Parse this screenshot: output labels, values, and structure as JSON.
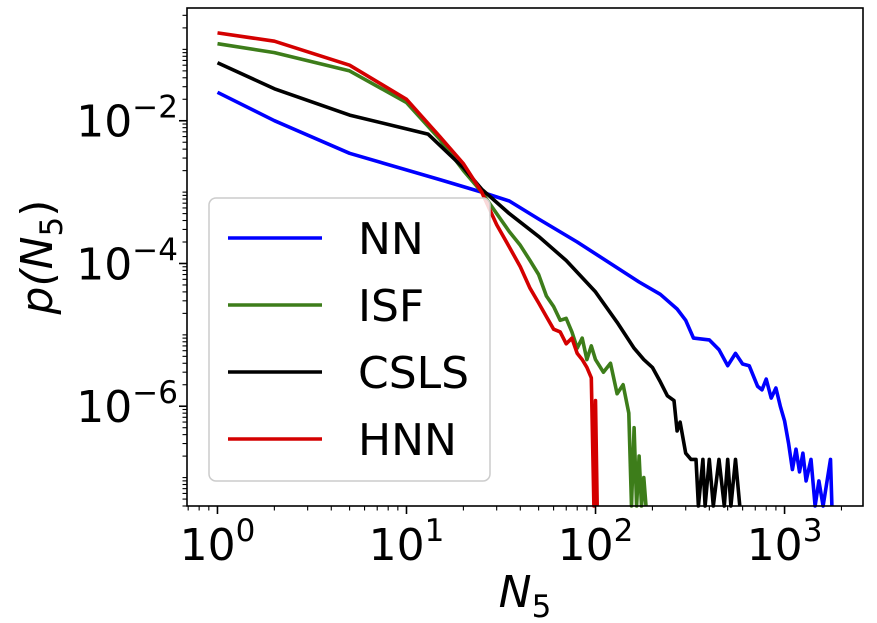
{
  "chart_data": {
    "type": "line",
    "title": "",
    "xlabel": "N",
    "xlabel_subscript": "5",
    "ylabel_prefix": "p(N",
    "ylabel_subscript": "5",
    "ylabel_suffix": ")",
    "x_scale": "log",
    "y_scale": "log",
    "xlim": [
      0.69,
      2600
    ],
    "ylim": [
      4e-08,
      0.38
    ],
    "grid": false,
    "legend_position": "center-left",
    "x_ticks": [
      {
        "base": "10",
        "exp": "0",
        "value": 1
      },
      {
        "base": "10",
        "exp": "1",
        "value": 10
      },
      {
        "base": "10",
        "exp": "2",
        "value": 100
      },
      {
        "base": "10",
        "exp": "3",
        "value": 1000
      }
    ],
    "y_ticks": [
      {
        "base": "10",
        "exp": "−2",
        "value": 0.01
      },
      {
        "base": "10",
        "exp": "−4",
        "value": 0.0001
      },
      {
        "base": "10",
        "exp": "−6",
        "value": 1e-06
      }
    ],
    "series": [
      {
        "name": "NN",
        "color": "#0000ff",
        "points": [
          [
            1,
            0.025
          ],
          [
            2,
            0.01
          ],
          [
            5,
            0.0035
          ],
          [
            15,
            0.0015
          ],
          [
            25,
            0.001
          ],
          [
            35,
            0.00075
          ],
          [
            50,
            0.00042
          ],
          [
            80,
            0.0002
          ],
          [
            120,
            0.0001
          ],
          [
            170,
            5.5e-05
          ],
          [
            220,
            3.7e-05
          ],
          [
            270,
            2.3e-05
          ],
          [
            300,
            1.6e-05
          ],
          [
            330,
            9e-06
          ],
          [
            400,
            8.5e-06
          ],
          [
            450,
            6.2e-06
          ],
          [
            500,
            3.7e-06
          ],
          [
            550,
            5.5e-06
          ],
          [
            600,
            3.9e-06
          ],
          [
            650,
            3.7e-06
          ],
          [
            720,
            1.9e-06
          ],
          [
            760,
            1.7e-06
          ],
          [
            800,
            2.4e-06
          ],
          [
            850,
            1.3e-06
          ],
          [
            900,
            1.8e-06
          ],
          [
            950,
            1e-06
          ],
          [
            1000,
            6.2e-07
          ],
          [
            1050,
            3e-07
          ],
          [
            1100,
            1.3e-07
          ],
          [
            1150,
            2.5e-07
          ],
          [
            1200,
            1.2e-07
          ],
          [
            1250,
            2.2e-07
          ],
          [
            1300,
            9e-08
          ],
          [
            1380,
            1.8e-07
          ],
          [
            1450,
            4e-08
          ],
          [
            1520,
            9e-08
          ],
          [
            1600,
            4e-08
          ],
          [
            1750,
            1.8e-07
          ],
          [
            1780,
            4e-08
          ]
        ]
      },
      {
        "name": "ISF",
        "color": "#3d7d1a",
        "points": [
          [
            1,
            0.12
          ],
          [
            2,
            0.09
          ],
          [
            5,
            0.05
          ],
          [
            10,
            0.018
          ],
          [
            15,
            0.0055
          ],
          [
            20,
            0.002
          ],
          [
            25,
            0.001
          ],
          [
            30,
            0.0005
          ],
          [
            35,
            0.00028
          ],
          [
            40,
            0.00018
          ],
          [
            45,
            0.00011
          ],
          [
            50,
            7e-05
          ],
          [
            55,
            3.5e-05
          ],
          [
            60,
            2.5e-05
          ],
          [
            65,
            1.6e-05
          ],
          [
            70,
            1.7e-05
          ],
          [
            75,
            1.1e-05
          ],
          [
            80,
            6.5e-06
          ],
          [
            85,
            9e-06
          ],
          [
            90,
            4.5e-06
          ],
          [
            95,
            7e-06
          ],
          [
            100,
            4.5e-06
          ],
          [
            110,
            3e-06
          ],
          [
            120,
            4e-06
          ],
          [
            130,
            1.5e-06
          ],
          [
            140,
            2e-06
          ],
          [
            150,
            8e-07
          ],
          [
            155,
            4e-08
          ],
          [
            160,
            5e-07
          ],
          [
            165,
            4e-08
          ],
          [
            170,
            2e-07
          ],
          [
            175,
            4e-08
          ],
          [
            180,
            1e-07
          ],
          [
            185,
            4e-08
          ]
        ]
      },
      {
        "name": "CSLS",
        "color": "#000000",
        "points": [
          [
            1,
            0.065
          ],
          [
            2,
            0.028
          ],
          [
            5,
            0.012
          ],
          [
            13,
            0.0065
          ],
          [
            20,
            0.0022
          ],
          [
            25,
            0.0011
          ],
          [
            35,
            0.0005
          ],
          [
            50,
            0.00024
          ],
          [
            70,
            0.00011
          ],
          [
            100,
            4e-05
          ],
          [
            130,
            1.5e-05
          ],
          [
            160,
            6.5e-06
          ],
          [
            180,
            4.5e-06
          ],
          [
            200,
            3.5e-06
          ],
          [
            220,
            2.2e-06
          ],
          [
            240,
            1.4e-06
          ],
          [
            260,
            1.2e-06
          ],
          [
            270,
            4.5e-07
          ],
          [
            280,
            6e-07
          ],
          [
            300,
            2.2e-07
          ],
          [
            320,
            1.8e-07
          ],
          [
            340,
            1.8e-07
          ],
          [
            350,
            4e-08
          ],
          [
            370,
            1.8e-07
          ],
          [
            380,
            4e-08
          ],
          [
            400,
            1.8e-07
          ],
          [
            420,
            4e-08
          ],
          [
            450,
            1.8e-07
          ],
          [
            480,
            4e-08
          ],
          [
            500,
            1.8e-07
          ],
          [
            520,
            4e-08
          ],
          [
            550,
            1.8e-07
          ],
          [
            580,
            4e-08
          ]
        ]
      },
      {
        "name": "HNN",
        "color": "#d40000",
        "points": [
          [
            1,
            0.17
          ],
          [
            2,
            0.13
          ],
          [
            5,
            0.06
          ],
          [
            10,
            0.02
          ],
          [
            15,
            0.006
          ],
          [
            20,
            0.0025
          ],
          [
            25,
            0.001
          ],
          [
            30,
            0.00035
          ],
          [
            35,
            0.00017
          ],
          [
            40,
            9e-05
          ],
          [
            45,
            4.5e-05
          ],
          [
            50,
            2.8e-05
          ],
          [
            55,
            1.8e-05
          ],
          [
            60,
            1.2e-05
          ],
          [
            65,
            1.1e-05
          ],
          [
            70,
            7.5e-06
          ],
          [
            75,
            9e-06
          ],
          [
            80,
            5.5e-06
          ],
          [
            85,
            4.5e-06
          ],
          [
            90,
            3.5e-06
          ],
          [
            95,
            2.5e-06
          ],
          [
            98,
            4e-08
          ],
          [
            100,
            1.2e-06
          ],
          [
            102,
            4e-08
          ]
        ]
      }
    ]
  }
}
